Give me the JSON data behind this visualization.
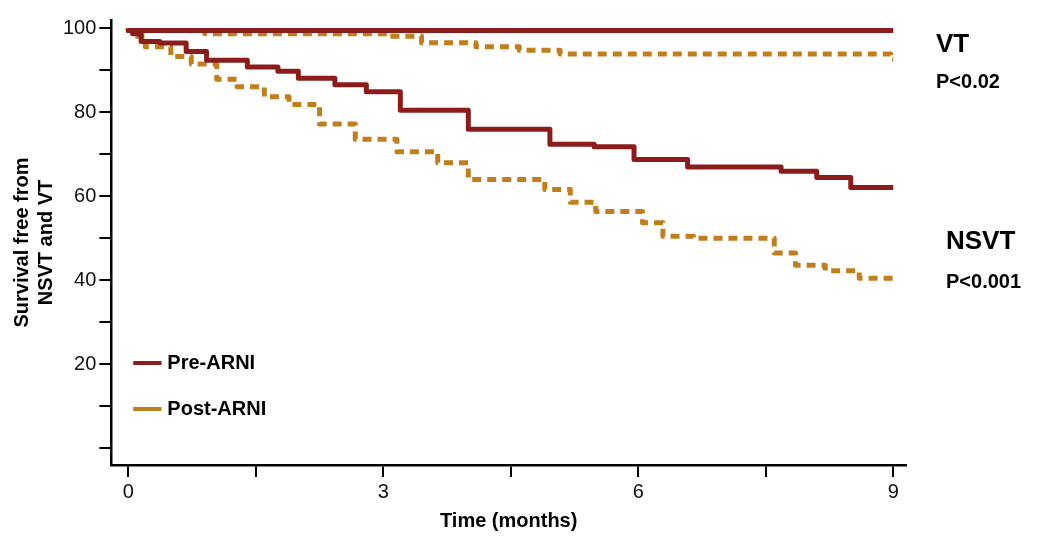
{
  "chart_data": {
    "type": "step",
    "xlabel": "Time (months)",
    "ylabel": "Survival free from\nNSVT and VT",
    "xlim": [
      -0.2,
      9.15
    ],
    "ylim": [
      -4,
      102
    ],
    "xticks": [
      0,
      {
        "value": 1.5,
        "label": null
      },
      3,
      {
        "value": 4.5,
        "label": null
      },
      6,
      {
        "value": 7.5,
        "label": null
      },
      9
    ],
    "yticks": [
      {
        "value": 0,
        "label": null
      },
      {
        "value": 10,
        "label": null
      },
      20,
      {
        "value": 30,
        "label": null
      },
      40,
      {
        "value": 50,
        "label": null
      },
      60,
      {
        "value": 70,
        "label": null
      },
      80,
      {
        "value": 90,
        "label": null
      },
      100
    ],
    "grid": false,
    "legend": "bottom left",
    "marker": "none",
    "annotations": [
      "VT",
      "P<0.02",
      "NSVT",
      "P<0.001"
    ],
    "series": [
      {
        "name": "Pre-ARNI",
        "color": "#8b1c1c",
        "line_style": "solid",
        "x": [
          0,
          6,
          9
        ],
        "values": [
          100,
          99.5,
          99.5
        ]
      },
      {
        "name": "Post-ARNI",
        "color": "#c17e1c",
        "line_style": "dashed",
        "x": [
          0,
          0.9,
          3.07,
          3.45,
          4.09,
          4.6,
          5.08,
          6,
          8.97,
          9
        ],
        "values": [
          100,
          99.5,
          98.7,
          98.1,
          96.6,
          95.6,
          94.8,
          93.9,
          93.9,
          92.6
        ]
      },
      {
        "color": "#8b1c1c",
        "line_style": "solid",
        "x": [
          0,
          0.05,
          0.15,
          0.37,
          0.68,
          0.92,
          1.4,
          1.76,
          2,
          2.43,
          2.8,
          3.2,
          4,
          4.96,
          5.48,
          5.95,
          6.58,
          7.68,
          8.1,
          8.5,
          8.9,
          9
        ],
        "values": [
          100,
          99.5,
          98.7,
          96.9,
          96.5,
          94.5,
          92.4,
          90.8,
          89.8,
          88.1,
          86.6,
          84.9,
          80.5,
          76,
          72.4,
          71.8,
          68.8,
          67,
          66,
          64.5,
          62.1,
          62.1
        ]
      },
      {
        "color": "#c17e1c",
        "line_style": "dashed",
        "x": [
          0,
          0.05,
          0.2,
          0.5,
          0.74,
          1.04,
          1.28,
          1.6,
          1.89,
          2.25,
          2.67,
          3.16,
          3.64,
          4,
          4.24,
          4.9,
          5.2,
          5.5,
          6.05,
          6.29,
          6.65,
          7.6,
          7.85,
          8.2,
          8.6,
          9
        ],
        "values": [
          100,
          99.5,
          98.1,
          95.6,
          93.3,
          91.5,
          87.9,
          86.1,
          83.7,
          81.9,
          77.2,
          73.6,
          70.6,
          68,
          64,
          64,
          61.6,
          58.6,
          56.4,
          53.7,
          50.5,
          50,
          46.5,
          43.6,
          42.3,
          40.5
        ]
      }
    ]
  }
}
